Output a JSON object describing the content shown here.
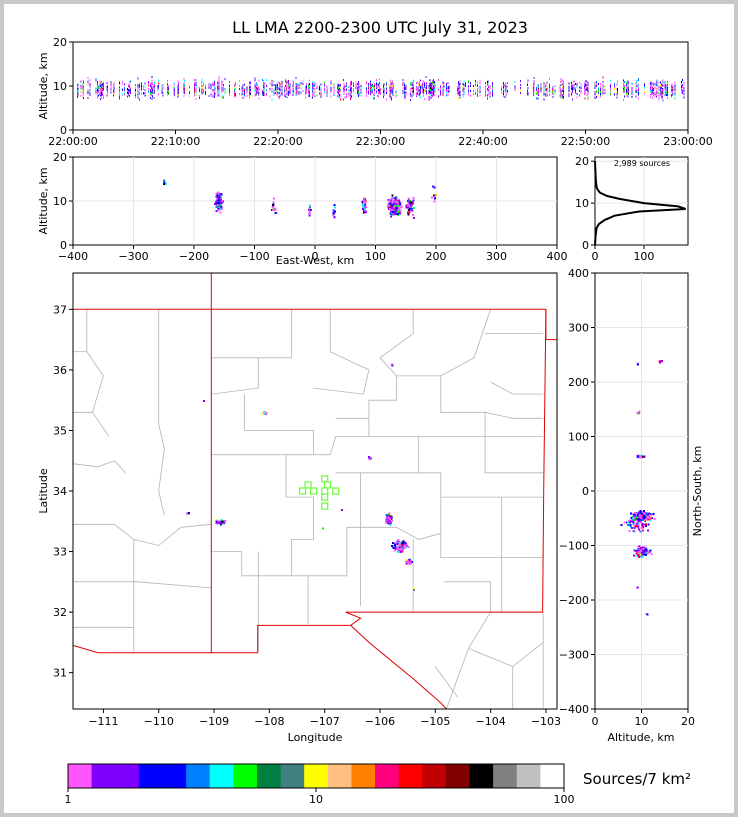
{
  "colors": {
    "county_lines": "#b4b4b4",
    "state_lines": "#e00000",
    "station_marker": "#66ff33",
    "altitude_profile": "#000000"
  },
  "chart_data": [
    {
      "type": "scatter",
      "id": "time-height",
      "title": "LL LMA 2200-2300 UTC July 31, 2023",
      "xlabel": "",
      "ylabel": "Altitude, km",
      "x_ticks": [
        "22:00:00",
        "22:10:00",
        "22:20:00",
        "22:30:00",
        "22:40:00",
        "22:50:00",
        "23:00:00"
      ],
      "xlim_minutes": [
        0,
        60
      ],
      "ylim": [
        0,
        20
      ],
      "y_ticks": [
        0,
        10,
        20
      ],
      "description_of_points": "thin vertical streaks of sources between 5 and 15 km across the whole hour"
    },
    {
      "type": "scatter",
      "id": "east-west-height",
      "xlabel": "East-West, km",
      "ylabel": "Altitude, km",
      "xlim": [
        -400,
        400
      ],
      "x_ticks": [
        -400,
        -300,
        -200,
        -100,
        0,
        100,
        200,
        300,
        400
      ],
      "ylim": [
        0,
        20
      ],
      "y_ticks": [
        0,
        10,
        20
      ],
      "clusters_x_km": [
        -160,
        -70,
        -10,
        30,
        80,
        130,
        155
      ]
    },
    {
      "type": "line",
      "id": "altitude-histogram",
      "annotation": "2,989 sources",
      "xlim": [
        0,
        190
      ],
      "x_ticks": [
        0,
        100
      ],
      "ylim": [
        0,
        21
      ],
      "y_ticks": [
        0,
        10,
        20
      ],
      "profile": [
        [
          0,
          0
        ],
        [
          1,
          2
        ],
        [
          3,
          4
        ],
        [
          8,
          5
        ],
        [
          20,
          6
        ],
        [
          40,
          7
        ],
        [
          90,
          8
        ],
        [
          185,
          8.6
        ],
        [
          170,
          9.2
        ],
        [
          100,
          10
        ],
        [
          50,
          11
        ],
        [
          25,
          11.7
        ],
        [
          10,
          12.5
        ],
        [
          5,
          13.3
        ],
        [
          3,
          14
        ],
        [
          2,
          15
        ],
        [
          1,
          17
        ],
        [
          0,
          20
        ]
      ]
    },
    {
      "type": "scatter",
      "id": "plan-view",
      "xlabel": "Longitude",
      "ylabel": "Latitude",
      "xlim": [
        -111.55,
        -102.8
      ],
      "ylim": [
        30.4,
        37.6
      ],
      "x_ticks": [
        -111,
        -110,
        -109,
        -108,
        -107,
        -106,
        -105,
        -104,
        -103
      ],
      "y_ticks": [
        31,
        32,
        33,
        34,
        35,
        36,
        37
      ],
      "source_clusters_lon_lat": [
        [
          -108.9,
          33.5
        ],
        [
          -108.1,
          35.3
        ],
        [
          -106.2,
          34.55
        ],
        [
          -105.85,
          33.55
        ],
        [
          -105.6,
          33.0
        ],
        [
          -105.8,
          36.1
        ],
        [
          -107.05,
          33.4
        ],
        [
          -109.2,
          35.5
        ]
      ]
    },
    {
      "type": "scatter",
      "id": "north-south-height",
      "xlabel": "Altitude, km",
      "ylabel": "North-South, km",
      "xlim": [
        0,
        20
      ],
      "x_ticks": [
        0,
        10,
        20
      ],
      "ylim": [
        -400,
        400
      ],
      "y_ticks": [
        -400,
        -300,
        -200,
        -100,
        0,
        100,
        200,
        300,
        400
      ]
    },
    {
      "type": "colorbar",
      "id": "density-colorbar",
      "label": "Sources/7 km²",
      "scale": "log",
      "range": [
        1,
        100
      ],
      "tick_labels": [
        "1",
        "10",
        "100"
      ],
      "colors": [
        "#ff55ff",
        "#8000ff",
        "#8000ff",
        "#0000ff",
        "#0000ff",
        "#0080ff",
        "#00ffff",
        "#00ff00",
        "#008040",
        "#408080",
        "#ffff00",
        "#ffc080",
        "#ff8000",
        "#ff0080",
        "#ff0000",
        "#c00000",
        "#800000",
        "#000000",
        "#808080",
        "#c0c0c0",
        "#ffffff"
      ]
    }
  ]
}
